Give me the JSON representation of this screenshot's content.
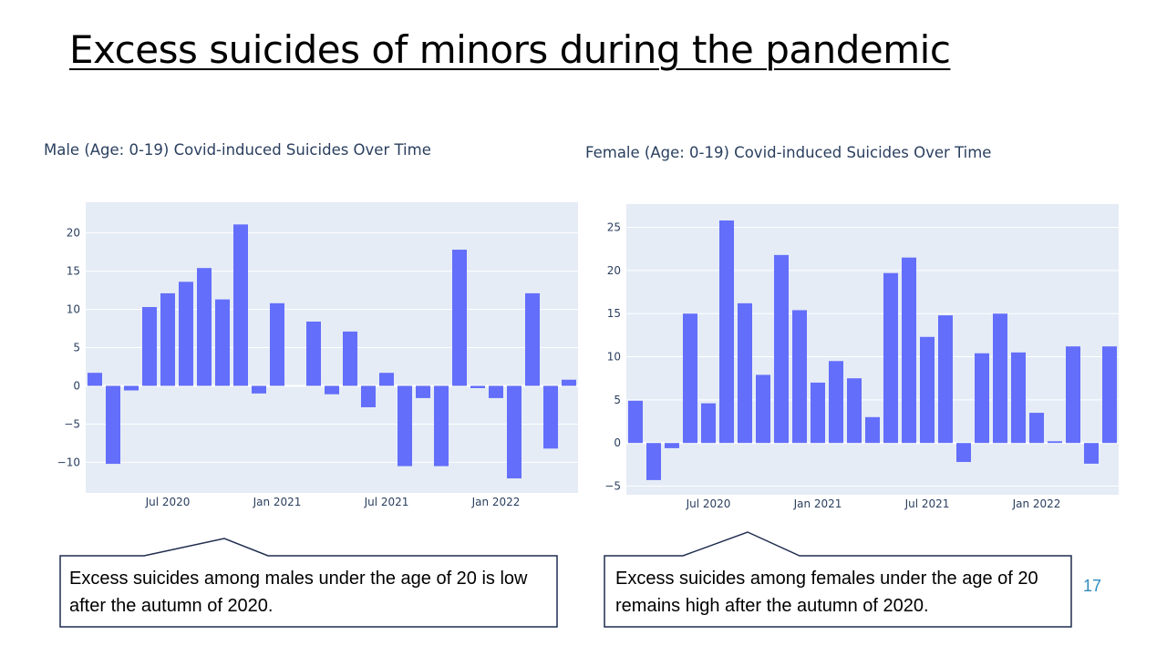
{
  "slide": {
    "title": "Excess suicides of minors during the pandemic",
    "page_number": "17"
  },
  "callouts": {
    "male": "Excess suicides among males under the age of 20 is low after the autumn of 2020.",
    "female": "Excess suicides among females under the age of 20 remains high after the autumn of 2020."
  },
  "colors": {
    "bar": "#636efa",
    "plot_bg": "#e5ecf6",
    "grid": "#ffffff",
    "tick_text": "#2a3f5f",
    "title_text": "#2a3f5f",
    "callout_border": "#1f2d4e",
    "page_number": "#2e8bc0"
  },
  "chart_data": [
    {
      "id": "male",
      "type": "bar",
      "title": "Male (Age: 0-19) Covid-induced Suicides Over Time",
      "x": [
        "2020-03",
        "2020-04",
        "2020-05",
        "2020-06",
        "2020-07",
        "2020-08",
        "2020-09",
        "2020-10",
        "2020-11",
        "2020-12",
        "2021-01",
        "2021-02",
        "2021-03",
        "2021-04",
        "2021-05",
        "2021-06",
        "2021-07",
        "2021-08",
        "2021-09",
        "2021-10",
        "2021-11",
        "2021-12",
        "2022-01",
        "2022-02",
        "2022-03",
        "2022-04",
        "2022-05"
      ],
      "values": [
        1.7,
        -10.2,
        -0.6,
        10.3,
        12.1,
        13.6,
        15.4,
        11.3,
        21.1,
        -1.0,
        10.8,
        0,
        8.4,
        -1.1,
        7.1,
        -2.8,
        1.7,
        -10.5,
        -1.6,
        -10.5,
        17.8,
        -0.3,
        -1.6,
        -12.1,
        12.1,
        -8.2,
        0.8
      ],
      "xlabel": "",
      "ylabel": "",
      "ylim": [
        -14,
        24
      ],
      "yticks": [
        20,
        15,
        10,
        5,
        0,
        -5,
        -10
      ],
      "ytick_labels": [
        "20",
        "15",
        "10",
        "5",
        "0",
        "−5",
        "−10"
      ],
      "xticks": [
        "2020-07",
        "2021-01",
        "2021-07",
        "2022-01"
      ],
      "xtick_labels": [
        "Jul 2020",
        "Jan 2021",
        "Jul 2021",
        "Jan 2022"
      ],
      "grid": true
    },
    {
      "id": "female",
      "type": "bar",
      "title": "Female (Age: 0-19) Covid-induced Suicides Over Time",
      "x": [
        "2020-03",
        "2020-04",
        "2020-05",
        "2020-06",
        "2020-07",
        "2020-08",
        "2020-09",
        "2020-10",
        "2020-11",
        "2020-12",
        "2021-01",
        "2021-02",
        "2021-03",
        "2021-04",
        "2021-05",
        "2021-06",
        "2021-07",
        "2021-08",
        "2021-09",
        "2021-10",
        "2021-11",
        "2021-12",
        "2022-01",
        "2022-02",
        "2022-03",
        "2022-04",
        "2022-05"
      ],
      "values": [
        4.9,
        -4.3,
        -0.6,
        15.0,
        4.6,
        25.8,
        16.2,
        7.9,
        21.8,
        15.4,
        7.0,
        9.5,
        7.5,
        3.0,
        19.7,
        21.5,
        12.3,
        14.8,
        -2.2,
        10.4,
        15.0,
        10.5,
        3.5,
        0.2,
        11.2,
        -2.4,
        11.2
      ],
      "xlabel": "",
      "ylabel": "",
      "ylim": [
        -6,
        27.7
      ],
      "yticks": [
        25,
        20,
        15,
        10,
        5,
        0,
        -5
      ],
      "ytick_labels": [
        "25",
        "20",
        "15",
        "10",
        "5",
        "0",
        "−5"
      ],
      "xticks": [
        "2020-07",
        "2021-01",
        "2021-07",
        "2022-01"
      ],
      "xtick_labels": [
        "Jul 2020",
        "Jan 2021",
        "Jul 2021",
        "Jan 2022"
      ],
      "grid": true
    }
  ]
}
